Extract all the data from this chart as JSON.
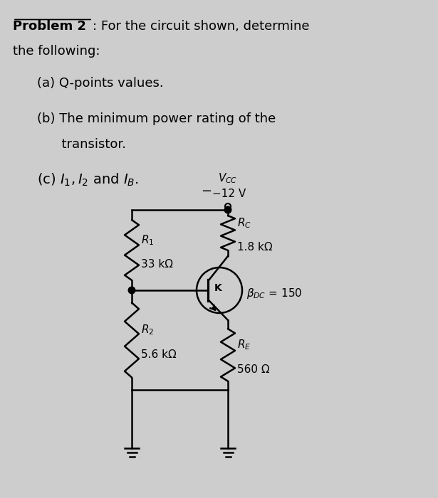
{
  "bg_color": "#cdcdcd",
  "title_bold": "Problem 2",
  "title_rest": ": For the circuit shown, determine",
  "title_line2": "the following:",
  "item_a": "(a) Q-points values.",
  "item_b1": "(b) The minimum power rating of the",
  "item_b2": "      transistor.",
  "item_c": "(c) $I_1, I_2$ and $I_B$.",
  "vcc_label": "$V_{CC}$",
  "vcc_value": "−12 V",
  "r1_label": "$R_1$",
  "r1_value": "33 kΩ",
  "r2_label": "$R_2$",
  "r2_value": "5.6 kΩ",
  "rc_label": "$R_C$",
  "rc_value": "1.8 kΩ",
  "re_label": "$R_E$",
  "re_value": "560 Ω",
  "beta_label": "$\\beta_{DC}$ = 150",
  "font_size_text": 13,
  "font_size_circuit": 11,
  "circuit_color": "#000000"
}
